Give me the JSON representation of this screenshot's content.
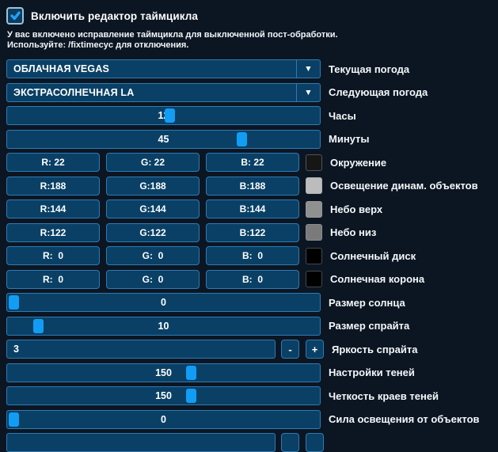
{
  "theme": {
    "bg": "#0c1622",
    "panel_fill": "#0a4065",
    "panel_border": "#2e7ab6",
    "handle": "#129df5",
    "text": "#ffffff"
  },
  "header": {
    "checkbox_label": "Включить редактор таймцикла",
    "checked": true
  },
  "warning": {
    "line1": "У вас включено исправление таймцикла для выключенной пост-обработки.",
    "line2": "Используйте: /fixtimecyc для отключения."
  },
  "dropdowns": [
    {
      "value": "ОБЛАЧНАЯ VEGAS",
      "label": "Текущая погода",
      "arrow": "▼"
    },
    {
      "value": "ЭКСТРАСОЛНЕЧНАЯ LA",
      "label": "Следующая погода",
      "arrow": "▼"
    }
  ],
  "sliders": {
    "hours": {
      "value": "12",
      "label": "Часы",
      "pct": 50.5
    },
    "minutes": {
      "value": "45",
      "label": "Минуты",
      "pct": 73.5
    },
    "sun_size": {
      "value": "0",
      "label": "Размер солнца",
      "pct": 0.5
    },
    "sprite_size": {
      "value": "10",
      "label": "Размер спрайта",
      "pct": 8.4
    },
    "shadows": {
      "value": "150",
      "label": "Настройки теней",
      "pct": 57.2
    },
    "shadow_edges": {
      "value": "150",
      "label": "Четкость краев теней",
      "pct": 57.2
    },
    "object_light": {
      "value": "0",
      "label": "Сила освещения от объектов",
      "pct": 0.5
    }
  },
  "rgb_rows": [
    {
      "r": "R: 22",
      "g": "G: 22",
      "b": "B: 22",
      "swatch": "#161616",
      "label": "Окружение"
    },
    {
      "r": "R:188",
      "g": "G:188",
      "b": "B:188",
      "swatch": "#bcbcbc",
      "label": "Освещение динам. объектов"
    },
    {
      "r": "R:144",
      "g": "G:144",
      "b": "B:144",
      "swatch": "#909090",
      "label": "Небо верх"
    },
    {
      "r": "R:122",
      "g": "G:122",
      "b": "B:122",
      "swatch": "#7a7a7a",
      "label": "Небо низ"
    },
    {
      "r": "R:  0",
      "g": "G:  0",
      "b": "B:  0",
      "swatch": "#000000",
      "label": "Солнечный диск"
    },
    {
      "r": "R:  0",
      "g": "G:  0",
      "b": "B:  0",
      "swatch": "#000000",
      "label": "Солнечная корона"
    }
  ],
  "stepper": {
    "value": "3",
    "minus": "-",
    "plus": "+",
    "label": "Яркость спрайта"
  }
}
